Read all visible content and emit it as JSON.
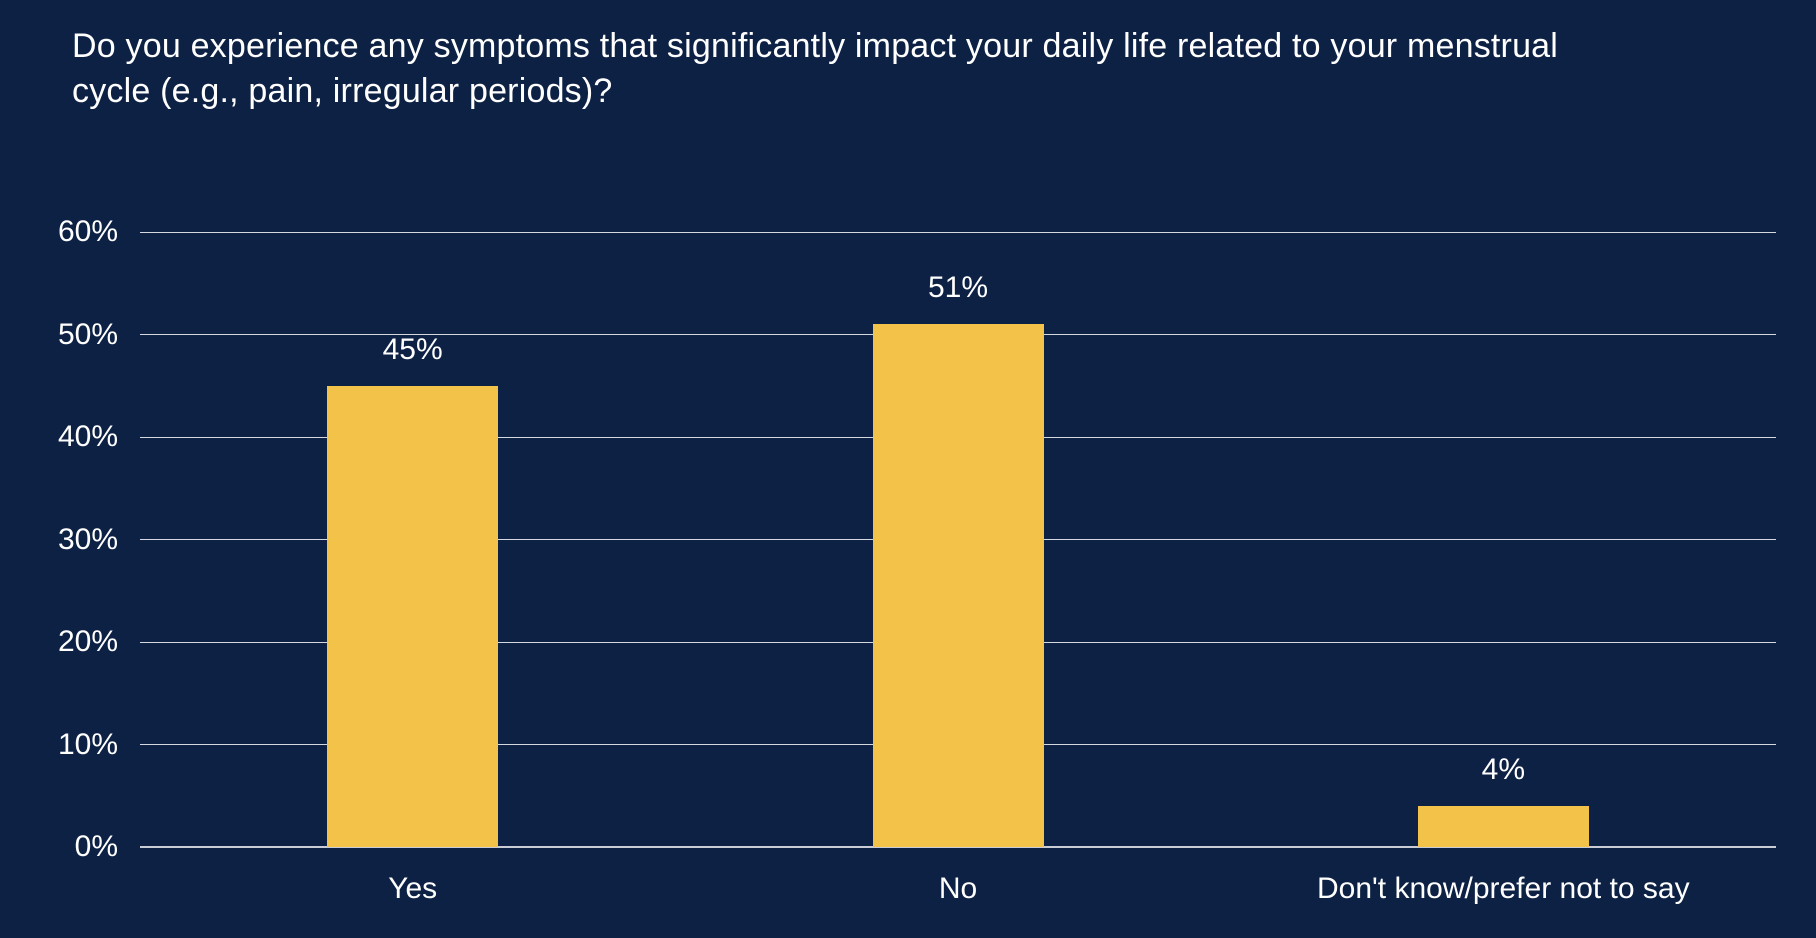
{
  "title": "Do you experience any symptoms that significantly impact your daily life related to your menstrual cycle (e.g., pain, irregular periods)?",
  "colors": {
    "background": "#0d2145",
    "bar": "#f3c349",
    "gridline": "#d6d8df",
    "axis_line": "#c9ccd5",
    "text": "#ffffff"
  },
  "chart_data": {
    "type": "bar",
    "title": "Do you experience any symptoms that significantly impact your daily life related to your menstrual cycle (e.g., pain, irregular periods)?",
    "categories": [
      "Yes",
      "No",
      "Don't know/prefer not to say"
    ],
    "values": [
      45,
      51,
      4
    ],
    "value_labels": [
      "45%",
      "51%",
      "4%"
    ],
    "xlabel": "",
    "ylabel": "",
    "ylim": [
      0,
      60
    ],
    "yticks": [
      0,
      10,
      20,
      30,
      40,
      50,
      60
    ],
    "ytick_labels": [
      "0%",
      "10%",
      "20%",
      "30%",
      "40%",
      "50%",
      "60%"
    ],
    "grid": true,
    "legend": false,
    "bar_color": "#f3c349"
  }
}
